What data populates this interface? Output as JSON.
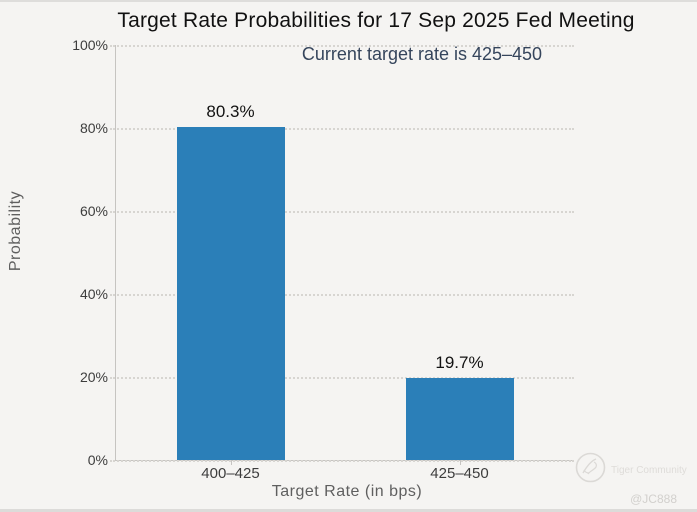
{
  "header": {
    "title": "Target Rate Probabilities for 17 Sep 2025 Fed Meeting",
    "subtitle": "Current target rate is 425–450"
  },
  "chart_data": {
    "type": "bar",
    "title": "Target Rate Probabilities for 17 Sep 2025 Fed Meeting",
    "subtitle": "Current target rate is 425–450",
    "categories": [
      "400–425",
      "425–450"
    ],
    "values": [
      80.3,
      19.7
    ],
    "value_labels": [
      "80.3%",
      "19.7%"
    ],
    "xlabel": "Target Rate (in bps)",
    "ylabel": "Probability",
    "ylim": [
      0,
      100
    ],
    "yticks": [
      0,
      20,
      40,
      60,
      80,
      100
    ],
    "ytick_labels": [
      "0%",
      "20%",
      "40%",
      "60%",
      "80%",
      "100%"
    ],
    "grid": "horizontal-dotted",
    "legend": "none",
    "bar_color": "#2b7fb8"
  },
  "colors": {
    "background": "#f5f4f2",
    "bar": "#2b7fb8",
    "title": "#111111",
    "subtitle": "#35455c",
    "axis_text": "#3d3d3d",
    "axis_title_text": "#5f5f5f",
    "gridline": "#d7d5d1",
    "axis_line": "#c6c4c1"
  },
  "watermark": {
    "brand": "Tiger Community",
    "handle": "@JC888"
  }
}
